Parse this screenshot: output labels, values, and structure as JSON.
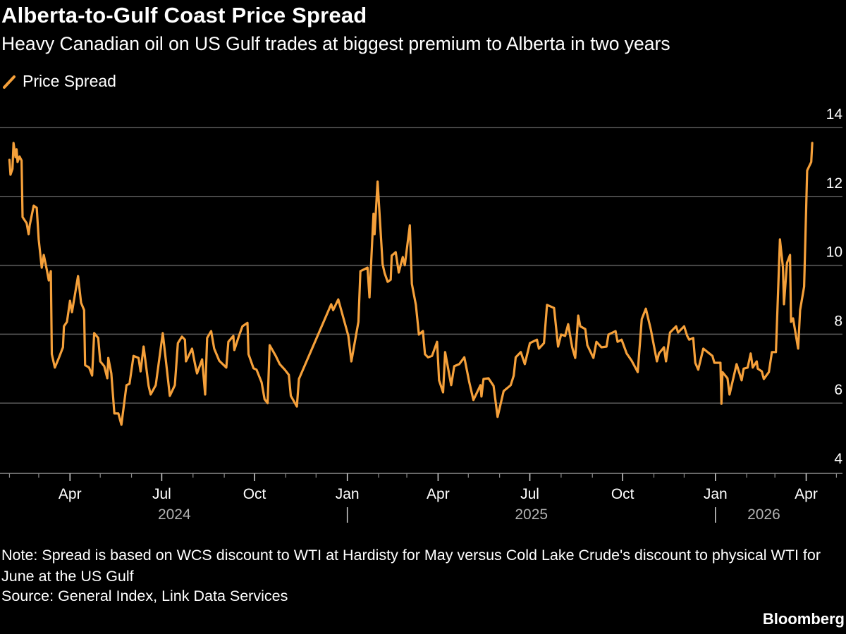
{
  "header": {
    "title": "Alberta-to-Gulf Coast Price Spread",
    "subtitle": "Heavy Canadian oil on US Gulf trades at biggest premium to Alberta in two years"
  },
  "footer": {
    "note": "Note: Spread is based on WCS discount to WTI at Hardisty for May versus Cold Lake Crude's discount to physical WTI for June at the US Gulf",
    "source": "Source: General Index, Link Data Services",
    "logo": "Bloomberg"
  },
  "colors": {
    "background": "#000000",
    "line": "#f5a03a",
    "grid": "#5c5c5c",
    "axis": "#8c8c8c",
    "year_label": "#b3b3b3"
  },
  "chart_data": {
    "type": "line",
    "title": "Alberta-to-Gulf Coast Price Spread",
    "subtitle": "Heavy Canadian oil on US Gulf trades at biggest premium to Alberta in two years",
    "legend_placement": "top-left",
    "grid": true,
    "y_axis_side": "right",
    "ylim": [
      4,
      14
    ],
    "y_ticks": [
      4,
      6,
      8,
      10,
      12,
      14
    ],
    "xlim": [
      "2024-01-24",
      "2026-05-07"
    ],
    "x_ticks": [
      {
        "date": "2024-04-01",
        "label": "Apr"
      },
      {
        "date": "2024-07-01",
        "label": "Jul"
      },
      {
        "date": "2024-10-01",
        "label": "Oct"
      },
      {
        "date": "2025-01-01",
        "label": "Jan"
      },
      {
        "date": "2025-04-01",
        "label": "Apr"
      },
      {
        "date": "2025-07-01",
        "label": "Jul"
      },
      {
        "date": "2025-10-01",
        "label": "Oct"
      },
      {
        "date": "2026-01-01",
        "label": "Jan"
      },
      {
        "date": "2026-04-01",
        "label": "Apr"
      }
    ],
    "years": [
      "2024",
      "2025",
      "2026"
    ],
    "series": [
      {
        "name": "Price Spread",
        "color": "#f5a03a",
        "x": [
          "2024-02-01",
          "2024-02-02",
          "2024-02-04",
          "2024-02-05",
          "2024-02-07",
          "2024-02-08",
          "2024-02-09",
          "2024-02-11",
          "2024-02-13",
          "2024-02-14",
          "2024-02-18",
          "2024-02-20",
          "2024-02-21",
          "2024-02-25",
          "2024-02-28",
          "2024-03-01",
          "2024-03-04",
          "2024-03-06",
          "2024-03-09",
          "2024-03-11",
          "2024-03-13",
          "2024-03-14",
          "2024-03-17",
          "2024-03-21",
          "2024-03-25",
          "2024-03-26",
          "2024-03-29",
          "2024-04-01",
          "2024-04-03",
          "2024-04-09",
          "2024-04-12",
          "2024-04-15",
          "2024-04-16",
          "2024-04-20",
          "2024-04-23",
          "2024-04-25",
          "2024-04-29",
          "2024-05-01",
          "2024-05-05",
          "2024-05-08",
          "2024-05-09",
          "2024-05-12",
          "2024-05-15",
          "2024-05-19",
          "2024-05-22",
          "2024-05-27",
          "2024-05-30",
          "2024-06-03",
          "2024-06-08",
          "2024-06-10",
          "2024-06-13",
          "2024-06-18",
          "2024-06-20",
          "2024-06-25",
          "2024-07-02",
          "2024-07-09",
          "2024-07-14",
          "2024-07-17",
          "2024-07-21",
          "2024-07-24",
          "2024-07-25",
          "2024-07-31",
          "2024-08-03",
          "2024-08-05",
          "2024-08-10",
          "2024-08-13",
          "2024-08-15",
          "2024-08-19",
          "2024-08-22",
          "2024-08-27",
          "2024-09-03",
          "2024-09-05",
          "2024-09-10",
          "2024-09-11",
          "2024-09-16",
          "2024-09-19",
          "2024-09-24",
          "2024-09-25",
          "2024-09-30",
          "2024-10-03",
          "2024-10-08",
          "2024-10-11",
          "2024-10-14",
          "2024-10-16",
          "2024-10-22",
          "2024-10-26",
          "2024-10-31",
          "2024-11-04",
          "2024-11-06",
          "2024-11-12",
          "2024-11-14",
          "2024-12-16",
          "2024-12-18",
          "2024-12-23",
          "2025-01-02",
          "2025-01-05",
          "2025-01-12",
          "2025-01-14",
          "2025-01-21",
          "2025-01-23",
          "2025-01-27",
          "2025-01-28",
          "2025-01-31",
          "2025-02-05",
          "2025-02-07",
          "2025-02-10",
          "2025-02-13",
          "2025-02-14",
          "2025-02-18",
          "2025-02-21",
          "2025-02-25",
          "2025-02-27",
          "2025-03-04",
          "2025-03-06",
          "2025-03-10",
          "2025-03-13",
          "2025-03-17",
          "2025-03-19",
          "2025-03-22",
          "2025-03-26",
          "2025-03-31",
          "2025-04-02",
          "2025-04-06",
          "2025-04-08",
          "2025-04-14",
          "2025-04-17",
          "2025-04-22",
          "2025-04-27",
          "2025-05-02",
          "2025-05-06",
          "2025-05-13",
          "2025-05-14",
          "2025-05-16",
          "2025-05-21",
          "2025-05-26",
          "2025-05-30",
          "2025-06-05",
          "2025-06-12",
          "2025-06-15",
          "2025-06-17",
          "2025-06-22",
          "2025-06-26",
          "2025-07-01",
          "2025-07-08",
          "2025-07-10",
          "2025-07-15",
          "2025-07-18",
          "2025-07-25",
          "2025-07-29",
          "2025-08-01",
          "2025-08-05",
          "2025-08-08",
          "2025-08-12",
          "2025-08-15",
          "2025-08-18",
          "2025-08-20",
          "2025-08-25",
          "2025-08-27",
          "2025-09-02",
          "2025-09-05",
          "2025-09-10",
          "2025-09-15",
          "2025-09-17",
          "2025-09-24",
          "2025-09-26",
          "2025-09-30",
          "2025-10-05",
          "2025-10-10",
          "2025-10-16",
          "2025-10-20",
          "2025-10-24",
          "2025-10-29",
          "2025-11-04",
          "2025-11-06",
          "2025-11-11",
          "2025-11-13",
          "2025-11-17",
          "2025-11-23",
          "2025-11-25",
          "2025-12-01",
          "2025-12-04",
          "2025-12-06",
          "2025-12-10",
          "2025-12-12",
          "2025-12-15",
          "2025-12-20",
          "2025-12-29",
          "2025-12-31",
          "2026-01-06",
          "2026-01-07",
          "2026-01-08",
          "2026-01-13",
          "2026-01-15",
          "2026-01-22",
          "2026-01-27",
          "2026-01-29",
          "2026-02-02",
          "2026-02-05",
          "2026-02-07",
          "2026-02-11",
          "2026-02-12",
          "2026-02-16",
          "2026-02-18",
          "2026-02-23",
          "2026-02-26",
          "2026-03-02",
          "2026-03-06",
          "2026-03-09",
          "2026-03-10",
          "2026-03-13",
          "2026-03-16",
          "2026-03-17",
          "2026-03-19",
          "2026-03-24",
          "2026-03-26",
          "2026-03-30",
          "2026-04-02",
          "2026-04-06",
          "2026-04-07"
        ],
        "y": [
          13.06,
          12.63,
          12.8,
          13.55,
          13.14,
          13.37,
          13.0,
          13.16,
          13.04,
          11.4,
          11.22,
          10.9,
          11.16,
          11.73,
          11.67,
          10.75,
          9.93,
          10.3,
          9.87,
          9.56,
          9.83,
          7.42,
          7.03,
          7.31,
          7.62,
          8.23,
          8.36,
          8.97,
          8.64,
          9.69,
          8.91,
          8.7,
          7.1,
          7.03,
          6.8,
          8.03,
          7.89,
          7.21,
          7.07,
          6.72,
          7.31,
          6.86,
          5.7,
          5.7,
          5.37,
          6.52,
          6.56,
          7.37,
          7.31,
          6.92,
          7.64,
          6.5,
          6.25,
          6.52,
          8.03,
          6.21,
          6.52,
          7.74,
          7.93,
          7.84,
          7.21,
          7.58,
          7.13,
          6.86,
          7.27,
          6.25,
          7.89,
          8.09,
          7.58,
          7.23,
          7.03,
          7.78,
          7.95,
          7.54,
          7.99,
          8.23,
          8.33,
          7.42,
          7.01,
          6.97,
          6.6,
          6.11,
          6.0,
          7.68,
          7.37,
          7.13,
          6.97,
          6.82,
          6.21,
          5.9,
          6.7,
          8.87,
          8.7,
          9.01,
          7.95,
          7.21,
          8.36,
          9.83,
          9.93,
          9.07,
          11.5,
          10.9,
          12.43,
          10.03,
          9.77,
          9.52,
          9.58,
          10.28,
          10.38,
          9.79,
          10.24,
          10.0,
          11.16,
          9.46,
          8.85,
          7.99,
          8.09,
          7.42,
          7.33,
          7.37,
          7.78,
          6.66,
          6.31,
          7.48,
          6.52,
          7.07,
          7.13,
          7.33,
          6.6,
          6.09,
          6.52,
          6.19,
          6.7,
          6.72,
          6.5,
          5.6,
          6.35,
          6.52,
          6.8,
          7.33,
          7.48,
          7.13,
          7.74,
          7.84,
          7.58,
          7.74,
          8.85,
          8.76,
          7.64,
          7.99,
          7.95,
          8.29,
          7.62,
          7.31,
          8.54,
          8.23,
          8.15,
          7.68,
          7.31,
          7.78,
          7.62,
          7.64,
          7.99,
          8.09,
          7.78,
          7.84,
          7.44,
          7.23,
          6.9,
          8.44,
          8.74,
          8.13,
          7.21,
          7.44,
          7.62,
          7.21,
          8.05,
          8.23,
          8.05,
          8.23,
          7.95,
          7.84,
          7.89,
          7.17,
          6.97,
          7.58,
          7.37,
          7.17,
          7.17,
          5.98,
          6.9,
          6.72,
          6.25,
          7.13,
          6.66,
          7.0,
          7.03,
          7.44,
          7.03,
          7.21,
          7.0,
          6.92,
          6.7,
          6.9,
          7.48,
          7.48,
          10.75,
          9.93,
          8.87,
          10.07,
          10.3,
          8.36,
          8.46,
          7.58,
          8.7,
          9.38,
          12.75,
          13.0,
          13.55
        ]
      }
    ]
  }
}
